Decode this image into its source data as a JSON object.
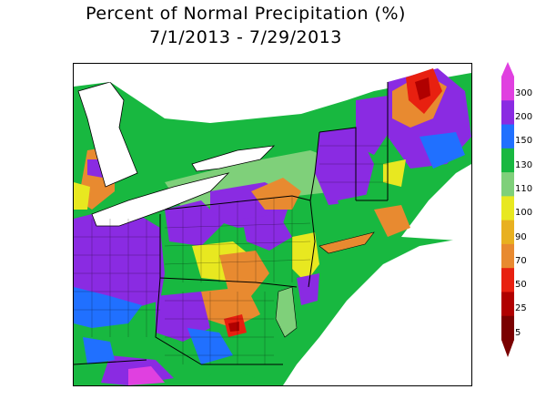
{
  "title": {
    "line1": "Percent of Normal Precipitation (%)",
    "line2": "7/1/2013 - 7/29/2013"
  },
  "legend": {
    "labels": [
      "300",
      "200",
      "150",
      "130",
      "110",
      "100",
      "90",
      "70",
      "50",
      "25",
      "5"
    ],
    "colors": {
      "c300": "#e040e0",
      "c200": "#8a2be2",
      "c150": "#2070ff",
      "c130": "#18b840",
      "c110": "#7fd07a",
      "c100": "#e8e820",
      "c90": "#e8b020",
      "c70": "#e88a30",
      "c50": "#e82010",
      "c25": "#b00000",
      "c5": "#7a0000"
    }
  },
  "map": {
    "water_color": "#ffffff",
    "boundary_color": "#000000"
  }
}
